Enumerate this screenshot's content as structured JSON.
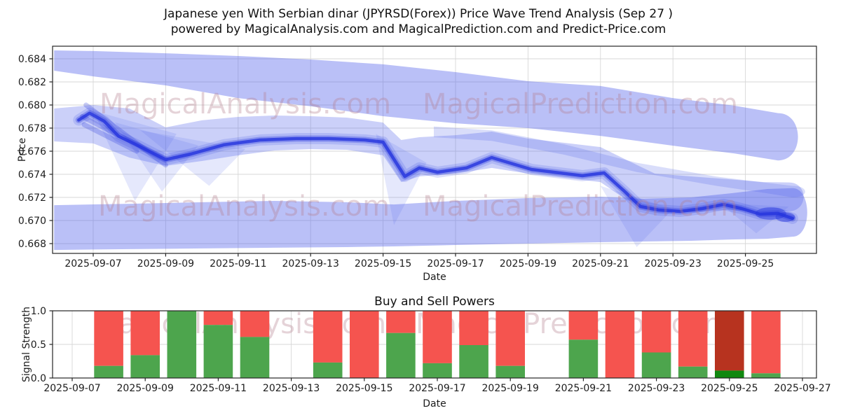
{
  "figure": {
    "title_line1": "Japanese yen With Serbian dinar (JPYRSD(Forex)) Price Wave Trend Analysis (Sep 27 )",
    "title_line2": "powered by MagicalAnalysis.com and MagicalPrediction.com and Predict-Price.com",
    "watermark1": "MagicalAnalysis.com",
    "watermark2": "MagicalPrediction.com",
    "colors": {
      "band_blue": "#5262ea",
      "core_blue": "#2433dd",
      "buy_green": "#4da54d",
      "sell_red": "#f5544f",
      "buy_green_dark": "#108810",
      "sell_red_dark": "#b7331f",
      "watermark_pink": "#b57f8f",
      "grid": "#d7d7d7",
      "frame": "#262626"
    }
  },
  "chart_data": [
    {
      "type": "area",
      "name": "price_wave_trend",
      "xlabel": "Date",
      "ylabel": "Price",
      "x_ticks": [
        "2025-09-07",
        "2025-09-09",
        "2025-09-11",
        "2025-09-13",
        "2025-09-15",
        "2025-09-17",
        "2025-09-19",
        "2025-09-21",
        "2025-09-23",
        "2025-09-25"
      ],
      "x_tick_days": [
        7,
        9,
        11,
        13,
        15,
        17,
        19,
        21,
        23,
        25
      ],
      "y_ticks": [
        0.684,
        0.682,
        0.68,
        0.678,
        0.676,
        0.674,
        0.672,
        0.67,
        0.668
      ],
      "ylim": [
        0.66715,
        0.68509
      ],
      "xlim_days": [
        5.92,
        26.95
      ],
      "grid": true,
      "legend": "none",
      "series": [
        {
          "name": "upper_band",
          "kind": "band",
          "opacity": 0.4,
          "cap": 38,
          "points": [
            [
              5.92,
              0.68473,
              0.68297
            ],
            [
              7,
              0.68467,
              0.68248
            ],
            [
              9,
              0.68448,
              0.6817
            ],
            [
              11,
              0.68424,
              0.6806
            ],
            [
              13,
              0.68394,
              0.6799
            ],
            [
              15,
              0.68352,
              0.67903
            ],
            [
              17,
              0.68285,
              0.67842
            ],
            [
              19,
              0.68206,
              0.678
            ],
            [
              21,
              0.68164,
              0.67733
            ],
            [
              23,
              0.6806,
              0.67648
            ],
            [
              24.7,
              0.67994,
              0.6758
            ],
            [
              25.9,
              0.6793,
              0.6752
            ]
          ]
        },
        {
          "name": "middle_band",
          "kind": "band",
          "opacity": 0.3,
          "cap": 28,
          "points": [
            [
              5.92,
              0.6797,
              0.67685
            ],
            [
              7,
              0.68,
              0.67667
            ],
            [
              8,
              0.6797,
              0.67545
            ],
            [
              9,
              0.67806,
              0.67473
            ],
            [
              10,
              0.67867,
              0.67515
            ],
            [
              11,
              0.67897,
              0.67564
            ],
            [
              12,
              0.67909,
              0.67606
            ],
            [
              13,
              0.67903,
              0.67618
            ],
            [
              14,
              0.67891,
              0.67612
            ],
            [
              15,
              0.67848,
              0.67564
            ],
            [
              15.5,
              0.67697,
              0.67333
            ],
            [
              16,
              0.67721,
              0.67382
            ],
            [
              17,
              0.67739,
              0.67406
            ],
            [
              18,
              0.6777,
              0.67455
            ],
            [
              19,
              0.67709,
              0.67406
            ],
            [
              20,
              0.67673,
              0.6737
            ],
            [
              21,
              0.67636,
              0.67333
            ],
            [
              21.7,
              0.67527,
              0.67182
            ],
            [
              22.5,
              0.67406,
              0.67091
            ],
            [
              23.5,
              0.67382,
              0.67073
            ],
            [
              24.5,
              0.67358,
              0.67091
            ],
            [
              25.5,
              0.67333,
              0.67073
            ],
            [
              26.2,
              0.6733,
              0.6708
            ]
          ]
        },
        {
          "name": "upper_edge_streak_band",
          "kind": "band",
          "opacity": 0.22,
          "cap": 24,
          "points": [
            [
              16.4,
              0.67814,
              0.67721
            ],
            [
              18,
              0.6778,
              0.6769
            ],
            [
              20,
              0.6766,
              0.6757
            ],
            [
              22,
              0.675,
              0.6742
            ],
            [
              24.2,
              0.6738,
              0.673
            ],
            [
              25.5,
              0.6733,
              0.6724
            ],
            [
              26.3,
              0.673,
              0.672
            ]
          ]
        },
        {
          "name": "lower_band",
          "kind": "band",
          "opacity": 0.4,
          "cap": 28,
          "points": [
            [
              5.92,
              0.67133,
              0.66745
            ],
            [
              8,
              0.67145,
              0.66752
            ],
            [
              10,
              0.67158,
              0.66758
            ],
            [
              12,
              0.6717,
              0.66764
            ],
            [
              14,
              0.67158,
              0.6677
            ],
            [
              15.3,
              0.67139,
              0.66776
            ],
            [
              17,
              0.6717,
              0.66788
            ],
            [
              19,
              0.67194,
              0.668
            ],
            [
              21,
              0.67206,
              0.66812
            ],
            [
              22.2,
              0.67188,
              0.66818
            ],
            [
              23.5,
              0.672,
              0.66824
            ],
            [
              24.6,
              0.67236,
              0.66836
            ],
            [
              25.6,
              0.67273,
              0.66842
            ],
            [
              26.3,
              0.6728,
              0.6686
            ]
          ]
        },
        {
          "name": "fan_wedges",
          "kind": "polygons",
          "opacity": 0.15,
          "polygons": [
            [
              [
                7.0,
                0.6795
              ],
              [
                8.15,
                0.6717
              ],
              [
                9.3,
                0.6775
              ]
            ],
            [
              [
                7.6,
                0.6785
              ],
              [
                8.9,
                0.6725
              ],
              [
                9.9,
                0.6765
              ]
            ],
            [
              [
                8.3,
                0.6778
              ],
              [
                10.2,
                0.673
              ],
              [
                11.2,
                0.6762
              ]
            ],
            [
              [
                14.8,
                0.6775
              ],
              [
                15.3,
                0.6696
              ],
              [
                16.2,
                0.675
              ]
            ],
            [
              [
                21.0,
                0.673
              ],
              [
                22.0,
                0.6677
              ],
              [
                23.0,
                0.671
              ]
            ],
            [
              [
                24.3,
                0.6715
              ],
              [
                25.3,
                0.6689
              ],
              [
                26.2,
                0.6712
              ]
            ]
          ]
        },
        {
          "name": "start_cluster_streaks",
          "kind": "lines",
          "opacity": 0.25,
          "lines": [
            [
              [
                6.7,
                0.679
              ],
              [
                9.0,
                0.6753
              ]
            ],
            [
              [
                6.8,
                0.68
              ],
              [
                9.0,
                0.6748
              ]
            ],
            [
              [
                6.75,
                0.6783
              ],
              [
                8.2,
                0.676
              ]
            ]
          ]
        },
        {
          "name": "core_trend",
          "kind": "line",
          "points": [
            [
              6.6,
              0.6787
            ],
            [
              6.9,
              0.6793
            ],
            [
              7.3,
              0.6786
            ],
            [
              7.7,
              0.6773
            ],
            [
              8.1,
              0.6767
            ],
            [
              9.0,
              0.67527
            ],
            [
              9.7,
              0.67576
            ],
            [
              10.6,
              0.67655
            ],
            [
              11.6,
              0.67697
            ],
            [
              12.6,
              0.67709
            ],
            [
              13.5,
              0.67709
            ],
            [
              14.5,
              0.67697
            ],
            [
              15.0,
              0.67679
            ],
            [
              15.6,
              0.67382
            ],
            [
              16.0,
              0.67455
            ],
            [
              16.5,
              0.67418
            ],
            [
              17.3,
              0.67455
            ],
            [
              18.0,
              0.67545
            ],
            [
              19.1,
              0.67442
            ],
            [
              20.5,
              0.67388
            ],
            [
              21.1,
              0.67412
            ],
            [
              21.7,
              0.67242
            ],
            [
              22.1,
              0.67121
            ],
            [
              22.6,
              0.67091
            ],
            [
              23.2,
              0.67079
            ],
            [
              23.8,
              0.67103
            ],
            [
              24.4,
              0.67139
            ],
            [
              24.9,
              0.67103
            ],
            [
              25.4,
              0.67055
            ],
            [
              25.9,
              0.67061
            ],
            [
              26.3,
              0.67018
            ]
          ]
        },
        {
          "name": "end_blobs",
          "kind": "blobs",
          "opacity": 0.45,
          "blobs": [
            [
              25.7,
              0.6706,
              22,
              9
            ],
            [
              26.1,
              0.6703,
              14,
              7
            ]
          ]
        }
      ]
    },
    {
      "type": "bar",
      "name": "buy_sell_powers",
      "title": "Buy and Sell Powers",
      "xlabel": "Date",
      "ylabel": "Signal Strength",
      "stacked": true,
      "x_ticks": [
        "2025-09-07",
        "2025-09-09",
        "2025-09-11",
        "2025-09-13",
        "2025-09-15",
        "2025-09-17",
        "2025-09-19",
        "2025-09-21",
        "2025-09-23",
        "2025-09-25",
        "2025-09-27"
      ],
      "x_tick_days": [
        7,
        9,
        11,
        13,
        15,
        17,
        19,
        21,
        23,
        25,
        27
      ],
      "y_ticks": [
        0.0,
        0.5,
        1.0
      ],
      "ylim": [
        0,
        1
      ],
      "grid": true,
      "series_names": [
        "buy_power_green",
        "sell_power_red"
      ],
      "bars": [
        {
          "date": "2025-09-08",
          "day": 8,
          "buy": 0.18,
          "sell": 0.82,
          "highlight": false
        },
        {
          "date": "2025-09-09",
          "day": 9,
          "buy": 0.34,
          "sell": 0.66,
          "highlight": false
        },
        {
          "date": "2025-09-10",
          "day": 10,
          "buy": 1.0,
          "sell": 0.0,
          "highlight": false
        },
        {
          "date": "2025-09-11",
          "day": 11,
          "buy": 0.79,
          "sell": 0.21,
          "highlight": false
        },
        {
          "date": "2025-09-12",
          "day": 12,
          "buy": 0.61,
          "sell": 0.39,
          "highlight": false
        },
        {
          "date": "2025-09-14",
          "day": 14,
          "buy": 0.23,
          "sell": 0.77,
          "highlight": false
        },
        {
          "date": "2025-09-15",
          "day": 15,
          "buy": 0.0,
          "sell": 1.0,
          "highlight": false
        },
        {
          "date": "2025-09-16",
          "day": 16,
          "buy": 0.67,
          "sell": 0.33,
          "highlight": false
        },
        {
          "date": "2025-09-17",
          "day": 17,
          "buy": 0.22,
          "sell": 0.78,
          "highlight": false
        },
        {
          "date": "2025-09-18",
          "day": 18,
          "buy": 0.49,
          "sell": 0.51,
          "highlight": false
        },
        {
          "date": "2025-09-19",
          "day": 19,
          "buy": 0.18,
          "sell": 0.82,
          "highlight": false
        },
        {
          "date": "2025-09-21",
          "day": 21,
          "buy": 0.57,
          "sell": 0.43,
          "highlight": false
        },
        {
          "date": "2025-09-22",
          "day": 22,
          "buy": 0.0,
          "sell": 1.0,
          "highlight": false
        },
        {
          "date": "2025-09-23",
          "day": 23,
          "buy": 0.38,
          "sell": 0.62,
          "highlight": false
        },
        {
          "date": "2025-09-24",
          "day": 24,
          "buy": 0.17,
          "sell": 0.83,
          "highlight": false
        },
        {
          "date": "2025-09-25",
          "day": 25,
          "buy": 0.11,
          "sell": 0.89,
          "highlight": true
        },
        {
          "date": "2025-09-26",
          "day": 26,
          "buy": 0.07,
          "sell": 0.93,
          "highlight": false
        }
      ]
    }
  ]
}
